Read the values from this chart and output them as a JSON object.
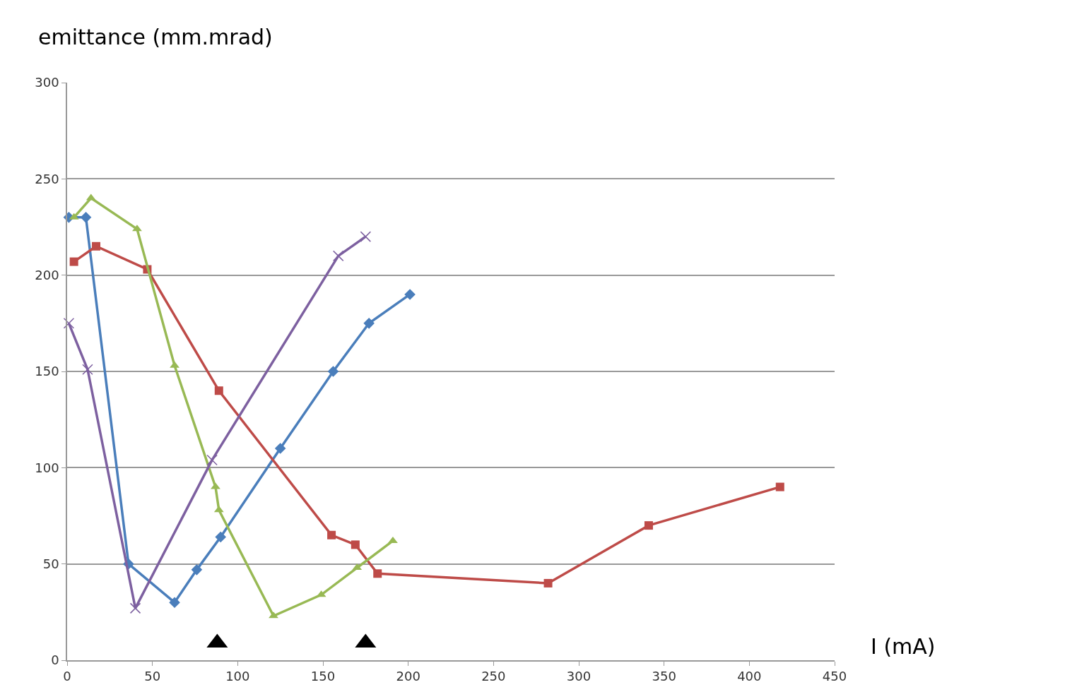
{
  "chart_data": {
    "type": "line",
    "ylabel": "emittance (mm.mrad)",
    "xlabel": "I (mA)",
    "xlim": [
      0,
      450
    ],
    "xticks": [
      0,
      50,
      100,
      150,
      200,
      250,
      300,
      350,
      400,
      450
    ],
    "ylim": [
      0,
      300
    ],
    "yticks": [
      0,
      50,
      100,
      150,
      200,
      250,
      300
    ],
    "grid": "y",
    "line_style": "solid",
    "series": [
      {
        "color": "#4a7ebb",
        "marker": "diamond",
        "x": [
          1,
          11,
          36,
          63,
          76,
          90,
          125,
          156,
          177,
          201
        ],
        "values": [
          230,
          230,
          50,
          30,
          47,
          64,
          110,
          150,
          175,
          190
        ]
      },
      {
        "color": "#be4b48",
        "marker": "square",
        "x": [
          4,
          17,
          47,
          89,
          155,
          169,
          182,
          282,
          341,
          418
        ],
        "values": [
          207,
          215,
          203,
          140,
          65,
          60,
          45,
          40,
          70,
          90
        ]
      },
      {
        "color": "#98b954",
        "marker": "triangle",
        "x": [
          4,
          14,
          41,
          63,
          87,
          89,
          121,
          149,
          170,
          191
        ],
        "values": [
          230,
          240,
          224,
          153,
          90,
          78,
          23,
          34,
          48,
          62
        ]
      },
      {
        "color": "#7d60a0",
        "marker": "cross",
        "x": [
          1,
          12,
          40,
          85,
          159,
          175
        ],
        "values": [
          175,
          151,
          27,
          104,
          210,
          220
        ]
      },
      {
        "type": "scatter",
        "color": "#000000",
        "marker": "triangle",
        "x": [
          88,
          175
        ],
        "values": [
          9,
          9
        ]
      }
    ]
  }
}
